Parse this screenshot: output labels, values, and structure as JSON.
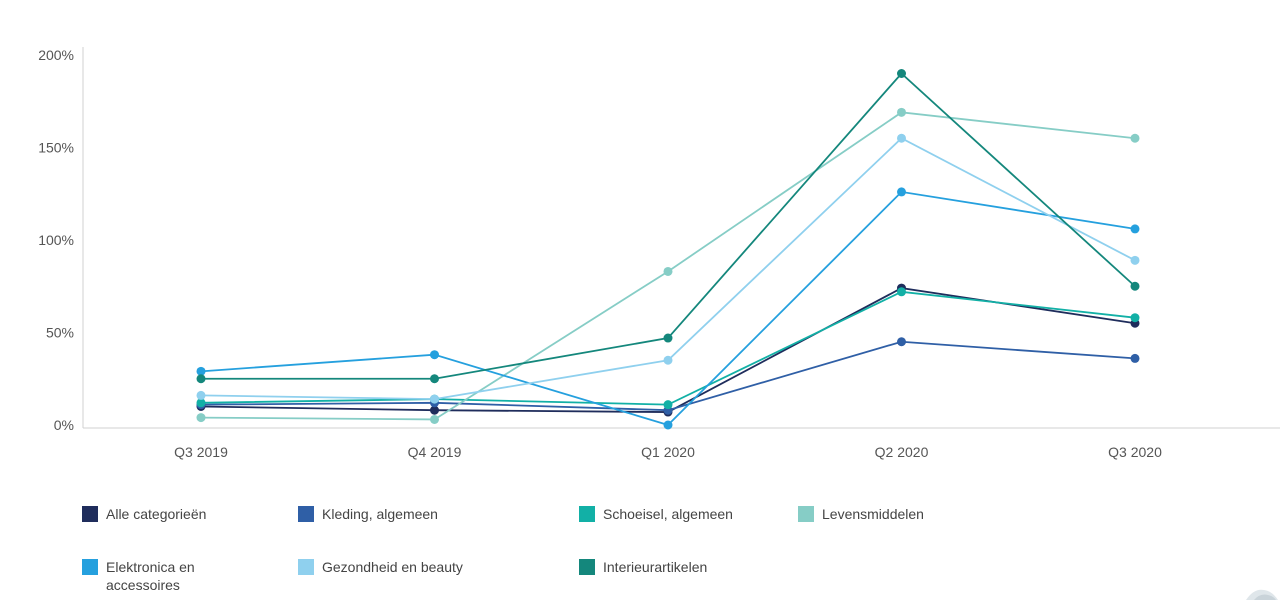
{
  "chart_data": {
    "type": "line",
    "categories": [
      "Q3 2019",
      "Q4 2019",
      "Q1 2020",
      "Q2 2020",
      "Q3 2020"
    ],
    "y_ticks": [
      "0%",
      "50%",
      "100%",
      "150%",
      "200%"
    ],
    "ylim": [
      0,
      200
    ],
    "grid": false,
    "legend_position": "bottom",
    "series": [
      {
        "name": "Alle categorieën",
        "color": "#1f2d5c",
        "values": [
          10,
          8,
          7,
          74,
          55
        ]
      },
      {
        "name": "Kleding, algemeen",
        "color": "#2f5fa6",
        "values": [
          11,
          12,
          8,
          45,
          36
        ]
      },
      {
        "name": "Schoeisel, algemeen",
        "color": "#12b0a6",
        "values": [
          12,
          14,
          11,
          72,
          58
        ]
      },
      {
        "name": "Levensmiddelen",
        "color": "#86cdc6",
        "values": [
          4,
          3,
          83,
          169,
          155
        ]
      },
      {
        "name": "Elektronica en\naccessoires",
        "color": "#25a0de",
        "values": [
          29,
          38,
          0,
          126,
          106
        ]
      },
      {
        "name": "Gezondheid en beauty",
        "color": "#8fd0ee",
        "values": [
          16,
          14,
          35,
          155,
          89
        ]
      },
      {
        "name": "Interieurartikelen",
        "color": "#14877c",
        "values": [
          25,
          25,
          47,
          190,
          75
        ]
      }
    ]
  }
}
